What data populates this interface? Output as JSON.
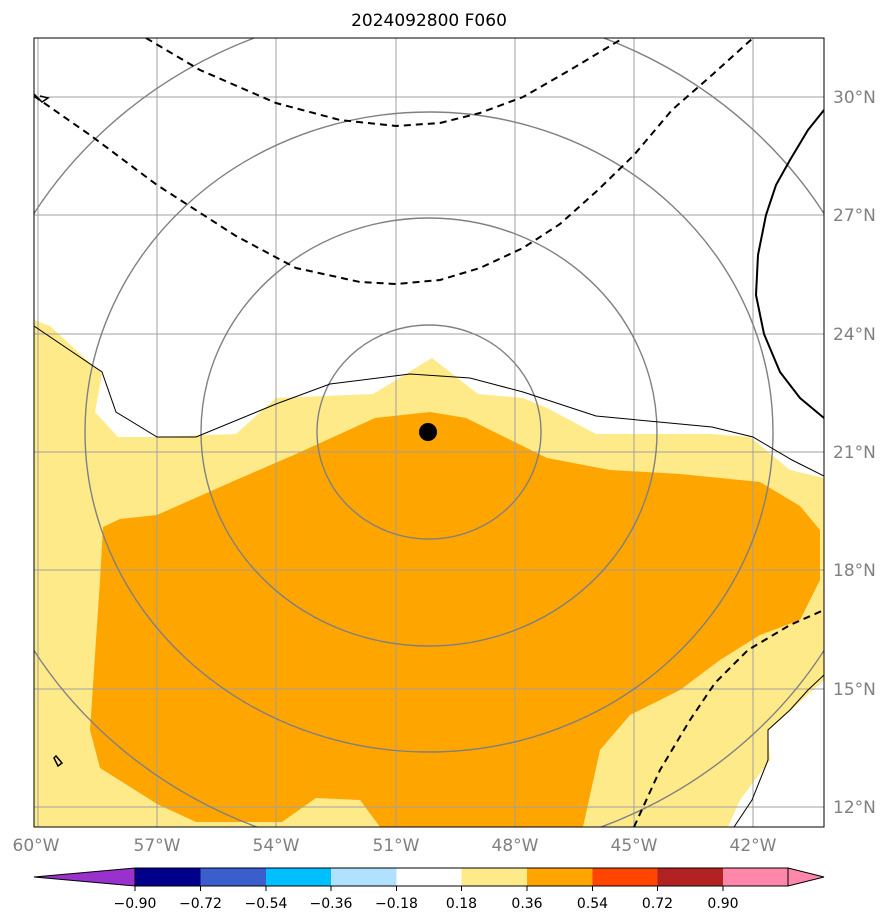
{
  "title": "2024092800 F060",
  "map": {
    "extent": {
      "lon_min": -60,
      "lon_max": -40,
      "lat_min": 11.5,
      "lat_max": 31.5
    },
    "latitude_labels": [
      {
        "lat": 30,
        "label": "30°N"
      },
      {
        "lat": 27,
        "label": "27°N"
      },
      {
        "lat": 24,
        "label": "24°N"
      },
      {
        "lat": 21,
        "label": "21°N"
      },
      {
        "lat": 18,
        "label": "18°N"
      },
      {
        "lat": 15,
        "label": "15°N"
      },
      {
        "lat": 12,
        "label": "12°N"
      }
    ],
    "longitude_labels": [
      {
        "lon": -60,
        "label": "60°W"
      },
      {
        "lon": -57,
        "label": "57°W"
      },
      {
        "lon": -54,
        "label": "54°W"
      },
      {
        "lon": -51,
        "label": "51°W"
      },
      {
        "lon": -48,
        "label": "48°W"
      },
      {
        "lon": -45,
        "label": "45°W"
      },
      {
        "lon": -42,
        "label": "42°W"
      }
    ],
    "center_marker": {
      "lon": -50.2,
      "lat": 21.5
    },
    "grid_color": "#a0a0a0",
    "range_ring_color": "#808080",
    "contour_color": "#000000"
  },
  "colorbar": {
    "labels": [
      "−0.90",
      "−0.72",
      "−0.54",
      "−0.36",
      "−0.18",
      "0.18",
      "0.36",
      "0.54",
      "0.72",
      "0.90"
    ],
    "colors": [
      "#9932cc",
      "#00008b",
      "#3a5fcd",
      "#00bfff",
      "#b0e2ff",
      "#ffffff",
      "#ffea8a",
      "#ffa500",
      "#ff4500",
      "#b22222",
      "#ff88aa"
    ]
  }
}
